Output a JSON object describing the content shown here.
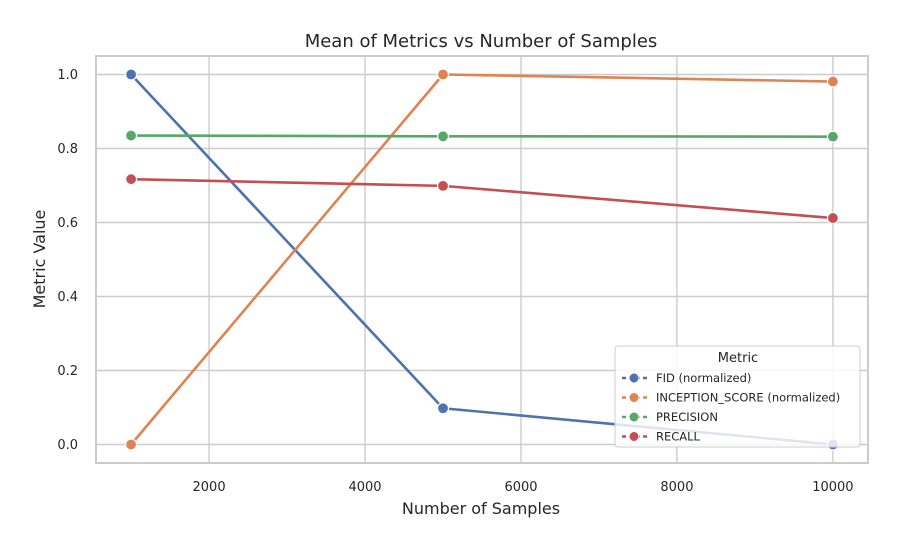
{
  "chart_data": {
    "type": "line",
    "title": "Mean of Metrics vs Number of Samples",
    "xlabel": "Number of Samples",
    "ylabel": "Metric Value",
    "x": [
      1000,
      5000,
      10000
    ],
    "xlim": [
      550,
      10450
    ],
    "ylim": [
      -0.05,
      1.05
    ],
    "xticks": [
      2000,
      4000,
      6000,
      8000,
      10000
    ],
    "yticks": [
      0.0,
      0.2,
      0.4,
      0.6,
      0.8,
      1.0
    ],
    "grid": true,
    "legend": {
      "title": "Metric",
      "placement": "lower-right"
    },
    "series": [
      {
        "name": "FID (normalized)",
        "color": "#4c72b0",
        "values": [
          1.0,
          0.098,
          0.0
        ]
      },
      {
        "name": "INCEPTION_SCORE (normalized)",
        "color": "#dd8452",
        "values": [
          0.0,
          1.0,
          0.981
        ]
      },
      {
        "name": "PRECISION",
        "color": "#55a868",
        "values": [
          0.835,
          0.833,
          0.832
        ]
      },
      {
        "name": "RECALL",
        "color": "#c44e52",
        "values": [
          0.717,
          0.699,
          0.612
        ]
      }
    ]
  }
}
